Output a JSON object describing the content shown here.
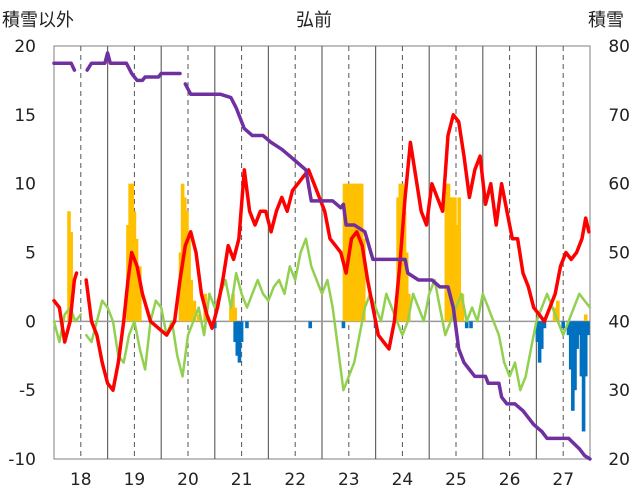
{
  "chart_data": {
    "type": "bar+line",
    "title": "弘前",
    "ylabel_left": "積雪以外",
    "ylabel_right": "積雪",
    "x_ticks": [
      "18",
      "19",
      "20",
      "21",
      "22",
      "23",
      "24",
      "25",
      "26",
      "27"
    ],
    "x_range": [
      17.5,
      27.5
    ],
    "y_left": {
      "range": [
        -10,
        20
      ],
      "ticks": [
        -10,
        -5,
        0,
        5,
        10,
        15,
        20
      ]
    },
    "y_right": {
      "range": [
        20,
        80
      ],
      "ticks": [
        20,
        30,
        40,
        50,
        60,
        70,
        80
      ]
    },
    "grid": {
      "vertical": "dashed",
      "horizontal": "none",
      "zero_line": true
    },
    "colors": {
      "orange_bars": "#FFC000",
      "blue_bars": "#0070C0",
      "red_series": "#FF0000",
      "green_series": "#92D050",
      "purple_series": "#7030A0"
    },
    "orange_bars": [
      [
        17.78,
        8
      ],
      [
        17.82,
        6.5
      ],
      [
        18.88,
        7
      ],
      [
        18.92,
        10
      ],
      [
        18.96,
        10
      ],
      [
        19.0,
        8
      ],
      [
        19.04,
        6
      ],
      [
        19.1,
        4
      ],
      [
        19.86,
        5
      ],
      [
        19.9,
        10
      ],
      [
        19.94,
        9
      ],
      [
        19.98,
        8
      ],
      [
        20.02,
        6
      ],
      [
        20.06,
        3
      ],
      [
        20.12,
        1.5
      ],
      [
        20.2,
        0.5
      ],
      [
        20.32,
        2
      ],
      [
        20.8,
        1
      ],
      [
        20.84,
        2
      ],
      [
        20.88,
        1
      ],
      [
        22.92,
        10
      ],
      [
        22.96,
        10
      ],
      [
        23.0,
        10
      ],
      [
        23.04,
        10
      ],
      [
        23.08,
        10
      ],
      [
        23.12,
        10
      ],
      [
        23.16,
        10
      ],
      [
        23.2,
        10
      ],
      [
        23.24,
        10
      ],
      [
        23.28,
        6
      ],
      [
        23.92,
        9
      ],
      [
        23.96,
        10
      ],
      [
        24.0,
        10
      ],
      [
        24.04,
        8
      ],
      [
        24.08,
        5
      ],
      [
        24.12,
        2
      ],
      [
        24.82,
        10
      ],
      [
        24.86,
        10
      ],
      [
        24.9,
        9
      ],
      [
        24.94,
        9
      ],
      [
        24.98,
        9
      ],
      [
        25.02,
        7
      ],
      [
        25.06,
        9
      ],
      [
        25.12,
        2
      ],
      [
        26.84,
        1
      ],
      [
        26.9,
        1.5
      ],
      [
        27.42,
        0.5
      ]
    ],
    "blue_bars": [
      [
        20.5,
        -0.5
      ],
      [
        20.88,
        -1.5
      ],
      [
        20.92,
        -2.5
      ],
      [
        20.96,
        -3
      ],
      [
        21.0,
        -1.5
      ],
      [
        21.1,
        -0.5
      ],
      [
        22.28,
        -0.5
      ],
      [
        22.9,
        -0.5
      ],
      [
        23.5,
        -0.5
      ],
      [
        25.2,
        -0.5
      ],
      [
        25.28,
        -0.5
      ],
      [
        26.52,
        -1.5
      ],
      [
        26.56,
        -3
      ],
      [
        26.6,
        -2
      ],
      [
        26.65,
        -0.5
      ],
      [
        27.0,
        -0.5
      ],
      [
        27.1,
        -1
      ],
      [
        27.14,
        -3.5
      ],
      [
        27.18,
        -6.5
      ],
      [
        27.22,
        -5
      ],
      [
        27.26,
        -2
      ],
      [
        27.3,
        -1
      ],
      [
        27.34,
        -4
      ],
      [
        27.38,
        -8
      ],
      [
        27.42,
        -4
      ],
      [
        27.46,
        -1
      ]
    ],
    "red_series": [
      [
        [
          17.5,
          1.5
        ],
        [
          17.6,
          1
        ],
        [
          17.7,
          -1.5
        ],
        [
          17.8,
          0
        ],
        [
          17.88,
          3
        ],
        [
          17.92,
          3.5
        ]
      ],
      [
        [
          18.1,
          3
        ],
        [
          18.2,
          0
        ],
        [
          18.3,
          -1
        ],
        [
          18.4,
          -3
        ],
        [
          18.5,
          -4.5
        ],
        [
          18.6,
          -5
        ],
        [
          18.7,
          -3
        ],
        [
          18.8,
          0
        ],
        [
          18.88,
          3
        ],
        [
          18.95,
          5
        ],
        [
          19.05,
          4
        ],
        [
          19.15,
          2
        ],
        [
          19.3,
          0
        ],
        [
          19.45,
          -0.5
        ],
        [
          19.6,
          -1
        ],
        [
          19.75,
          0
        ],
        [
          19.85,
          3
        ],
        [
          19.95,
          5.5
        ],
        [
          20.05,
          6.5
        ],
        [
          20.15,
          5
        ],
        [
          20.25,
          2
        ],
        [
          20.35,
          0.5
        ],
        [
          20.45,
          -0.5
        ],
        [
          20.55,
          1
        ],
        [
          20.65,
          3
        ],
        [
          20.75,
          5.5
        ],
        [
          20.85,
          4.5
        ],
        [
          20.95,
          6
        ],
        [
          21.05,
          11
        ],
        [
          21.15,
          8
        ],
        [
          21.25,
          7
        ],
        [
          21.35,
          8
        ],
        [
          21.45,
          8
        ],
        [
          21.55,
          6.5
        ],
        [
          21.65,
          8
        ],
        [
          21.75,
          9
        ],
        [
          21.85,
          8
        ],
        [
          21.95,
          9.5
        ],
        [
          22.05,
          10
        ],
        [
          22.15,
          10.5
        ],
        [
          22.25,
          11
        ],
        [
          22.35,
          10
        ],
        [
          22.45,
          9
        ],
        [
          22.55,
          8
        ],
        [
          22.65,
          6
        ],
        [
          22.75,
          5.5
        ],
        [
          22.85,
          5
        ],
        [
          22.95,
          3.5
        ],
        [
          23.05,
          6
        ],
        [
          23.15,
          6.5
        ],
        [
          23.25,
          5.5
        ],
        [
          23.35,
          3
        ],
        [
          23.45,
          1
        ],
        [
          23.55,
          -1
        ],
        [
          23.65,
          -1.5
        ],
        [
          23.75,
          -2
        ],
        [
          23.85,
          0
        ],
        [
          23.95,
          4
        ],
        [
          24.05,
          9
        ],
        [
          24.15,
          13
        ],
        [
          24.25,
          10.5
        ],
        [
          24.35,
          8
        ],
        [
          24.45,
          7
        ],
        [
          24.55,
          10
        ],
        [
          24.65,
          9
        ],
        [
          24.75,
          8
        ],
        [
          24.85,
          13.5
        ],
        [
          24.95,
          15
        ],
        [
          25.05,
          14.5
        ],
        [
          25.15,
          12
        ],
        [
          25.25,
          9
        ],
        [
          25.35,
          11
        ],
        [
          25.45,
          12
        ],
        [
          25.55,
          8.5
        ],
        [
          25.65,
          10
        ],
        [
          25.75,
          7
        ],
        [
          25.85,
          10
        ],
        [
          25.95,
          8
        ],
        [
          26.05,
          6
        ],
        [
          26.15,
          6
        ],
        [
          26.25,
          3.5
        ],
        [
          26.35,
          2.5
        ],
        [
          26.45,
          1
        ],
        [
          26.55,
          0.5
        ],
        [
          26.65,
          0
        ],
        [
          26.75,
          1
        ],
        [
          26.85,
          2
        ],
        [
          26.95,
          4
        ],
        [
          27.05,
          5
        ],
        [
          27.15,
          4.5
        ],
        [
          27.25,
          5
        ],
        [
          27.35,
          6
        ],
        [
          27.42,
          7.5
        ],
        [
          27.48,
          6.5
        ]
      ]
    ],
    "green_series": [
      [
        [
          17.5,
          0
        ],
        [
          17.6,
          -1.5
        ],
        [
          17.7,
          0.5
        ],
        [
          17.8,
          1
        ],
        [
          17.9,
          0
        ],
        [
          18.0,
          0.5
        ]
      ],
      [
        [
          18.1,
          -1
        ],
        [
          18.2,
          -1.5
        ],
        [
          18.3,
          0
        ],
        [
          18.4,
          1.5
        ],
        [
          18.5,
          1
        ],
        [
          18.6,
          0
        ],
        [
          18.7,
          -2.5
        ],
        [
          18.8,
          -3
        ],
        [
          18.9,
          -1
        ],
        [
          19.0,
          0
        ],
        [
          19.1,
          -2
        ],
        [
          19.2,
          -3.5
        ],
        [
          19.3,
          0
        ],
        [
          19.4,
          1.5
        ],
        [
          19.5,
          1
        ],
        [
          19.6,
          -1
        ],
        [
          19.7,
          0
        ],
        [
          19.8,
          -2.5
        ],
        [
          19.9,
          -4
        ],
        [
          20.0,
          -1
        ],
        [
          20.1,
          0
        ],
        [
          20.2,
          1
        ],
        [
          20.3,
          -1
        ],
        [
          20.4,
          2
        ],
        [
          20.5,
          1
        ],
        [
          20.6,
          2
        ],
        [
          20.7,
          3
        ],
        [
          20.8,
          1
        ],
        [
          20.9,
          3.5
        ],
        [
          21.0,
          2
        ],
        [
          21.1,
          1
        ],
        [
          21.2,
          2
        ],
        [
          21.3,
          3
        ],
        [
          21.4,
          2
        ],
        [
          21.5,
          1.5
        ],
        [
          21.6,
          2.5
        ],
        [
          21.7,
          3
        ],
        [
          21.8,
          2
        ],
        [
          21.9,
          4
        ],
        [
          22.0,
          3
        ],
        [
          22.1,
          5
        ],
        [
          22.2,
          6
        ],
        [
          22.3,
          4
        ],
        [
          22.4,
          3
        ],
        [
          22.5,
          2
        ],
        [
          22.6,
          3
        ],
        [
          22.7,
          1
        ],
        [
          22.8,
          -2
        ],
        [
          22.9,
          -5
        ],
        [
          23.0,
          -4
        ],
        [
          23.1,
          -3
        ],
        [
          23.2,
          -1
        ],
        [
          23.3,
          1
        ],
        [
          23.4,
          2
        ],
        [
          23.5,
          1
        ],
        [
          23.6,
          0
        ],
        [
          23.7,
          2
        ],
        [
          23.8,
          1
        ],
        [
          23.9,
          0
        ],
        [
          24.0,
          -1
        ],
        [
          24.1,
          0
        ],
        [
          24.2,
          2
        ],
        [
          24.3,
          1
        ],
        [
          24.4,
          0
        ],
        [
          24.5,
          2
        ],
        [
          24.6,
          3
        ],
        [
          24.7,
          1
        ],
        [
          24.8,
          -1
        ],
        [
          24.9,
          0
        ],
        [
          25.0,
          1
        ],
        [
          25.1,
          2
        ],
        [
          25.2,
          0
        ],
        [
          25.3,
          1
        ],
        [
          25.4,
          0
        ],
        [
          25.5,
          2
        ],
        [
          25.6,
          1
        ],
        [
          25.7,
          0
        ],
        [
          25.8,
          -1
        ],
        [
          25.9,
          -3
        ],
        [
          26.0,
          -4
        ],
        [
          26.1,
          -3
        ],
        [
          26.2,
          -5
        ],
        [
          26.3,
          -4
        ],
        [
          26.4,
          -2
        ],
        [
          26.5,
          0
        ],
        [
          26.6,
          1
        ],
        [
          26.7,
          2
        ],
        [
          26.8,
          1
        ],
        [
          26.9,
          0
        ],
        [
          27.0,
          -1
        ],
        [
          27.1,
          0
        ],
        [
          27.2,
          1
        ],
        [
          27.3,
          2
        ],
        [
          27.4,
          1.5
        ],
        [
          27.5,
          1
        ]
      ]
    ],
    "purple_series": [
      [
        [
          17.5,
          77.5
        ],
        [
          17.7,
          77.5
        ],
        [
          17.82,
          77.5
        ],
        [
          17.88,
          76.5
        ]
      ],
      [
        [
          18.12,
          76.5
        ],
        [
          18.2,
          77.5
        ],
        [
          18.45,
          77.5
        ],
        [
          18.5,
          79
        ],
        [
          18.55,
          77.5
        ],
        [
          18.85,
          77.5
        ],
        [
          18.95,
          76
        ],
        [
          19.05,
          75
        ],
        [
          19.15,
          75
        ],
        [
          19.2,
          75.5
        ],
        [
          19.45,
          75.5
        ],
        [
          19.5,
          76
        ],
        [
          19.85,
          76
        ]
      ],
      [
        [
          19.95,
          74.5
        ],
        [
          20.05,
          73
        ],
        [
          20.6,
          73
        ],
        [
          20.8,
          72.5
        ],
        [
          20.9,
          71
        ],
        [
          21.05,
          68
        ],
        [
          21.2,
          67
        ],
        [
          21.4,
          67
        ],
        [
          21.55,
          66
        ],
        [
          21.75,
          65
        ],
        [
          21.9,
          64
        ],
        [
          22.05,
          63
        ],
        [
          22.2,
          62
        ],
        [
          22.3,
          57.5
        ],
        [
          22.7,
          57.5
        ],
        [
          22.85,
          56.5
        ],
        [
          22.9,
          57
        ],
        [
          22.95,
          54
        ],
        [
          23.1,
          54
        ],
        [
          23.3,
          53
        ],
        [
          23.45,
          49
        ],
        [
          23.6,
          49
        ],
        [
          24.05,
          49
        ],
        [
          24.1,
          47
        ],
        [
          24.3,
          46
        ],
        [
          24.55,
          46
        ],
        [
          24.7,
          45
        ],
        [
          24.85,
          45
        ],
        [
          24.95,
          42
        ],
        [
          25.05,
          36
        ],
        [
          25.15,
          34
        ],
        [
          25.25,
          33
        ],
        [
          25.35,
          32
        ],
        [
          25.55,
          32
        ],
        [
          25.6,
          31
        ],
        [
          25.8,
          31
        ],
        [
          25.85,
          29
        ],
        [
          25.95,
          28
        ],
        [
          26.1,
          28
        ],
        [
          26.25,
          27
        ],
        [
          26.45,
          25
        ],
        [
          26.6,
          24
        ],
        [
          26.7,
          23
        ],
        [
          27.1,
          23
        ],
        [
          27.3,
          21.5
        ],
        [
          27.4,
          20.5
        ],
        [
          27.5,
          20
        ]
      ]
    ]
  }
}
